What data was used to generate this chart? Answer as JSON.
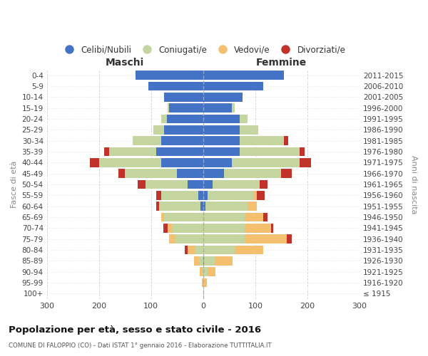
{
  "age_groups": [
    "100+",
    "95-99",
    "90-94",
    "85-89",
    "80-84",
    "75-79",
    "70-74",
    "65-69",
    "60-64",
    "55-59",
    "50-54",
    "45-49",
    "40-44",
    "35-39",
    "30-34",
    "25-29",
    "20-24",
    "15-19",
    "10-14",
    "5-9",
    "0-4"
  ],
  "birth_years": [
    "≤ 1915",
    "1916-1920",
    "1921-1925",
    "1926-1930",
    "1931-1935",
    "1936-1940",
    "1941-1945",
    "1946-1950",
    "1951-1955",
    "1956-1960",
    "1961-1965",
    "1966-1970",
    "1971-1975",
    "1976-1980",
    "1981-1985",
    "1986-1990",
    "1991-1995",
    "1996-2000",
    "2001-2005",
    "2006-2010",
    "2011-2015"
  ],
  "colors": {
    "celibi": "#4472c4",
    "coniugati": "#c5d5a0",
    "vedovi": "#f4c06f",
    "divorziati": "#c0322a"
  },
  "male": {
    "celibi": [
      0,
      0,
      0,
      0,
      0,
      0,
      0,
      0,
      5,
      10,
      30,
      50,
      80,
      90,
      80,
      75,
      70,
      65,
      75,
      105,
      130
    ],
    "coniugati": [
      0,
      0,
      2,
      8,
      15,
      55,
      60,
      75,
      80,
      70,
      80,
      100,
      120,
      90,
      55,
      20,
      10,
      3,
      0,
      0,
      0
    ],
    "vedovi": [
      0,
      2,
      5,
      10,
      15,
      10,
      8,
      5,
      0,
      0,
      0,
      0,
      0,
      0,
      0,
      0,
      0,
      0,
      0,
      0,
      0
    ],
    "divorziati": [
      0,
      0,
      0,
      0,
      5,
      0,
      8,
      0,
      5,
      10,
      15,
      12,
      18,
      10,
      0,
      0,
      0,
      0,
      0,
      0,
      0
    ]
  },
  "female": {
    "celibi": [
      0,
      0,
      0,
      2,
      0,
      0,
      0,
      0,
      5,
      8,
      18,
      40,
      55,
      70,
      70,
      70,
      70,
      55,
      75,
      115,
      155
    ],
    "coniugati": [
      0,
      2,
      8,
      20,
      60,
      80,
      80,
      80,
      80,
      90,
      90,
      110,
      130,
      115,
      85,
      35,
      15,
      5,
      0,
      0,
      0
    ],
    "vedovi": [
      2,
      5,
      15,
      35,
      55,
      80,
      50,
      35,
      18,
      5,
      0,
      0,
      0,
      0,
      0,
      0,
      0,
      0,
      0,
      0,
      0
    ],
    "divorziati": [
      0,
      0,
      0,
      0,
      0,
      10,
      5,
      8,
      0,
      15,
      15,
      20,
      22,
      10,
      8,
      0,
      0,
      0,
      0,
      0,
      0
    ]
  },
  "xlim": 300,
  "title": "Popolazione per età, sesso e stato civile - 2016",
  "subtitle": "COMUNE DI FALOPPIO (CO) - Dati ISTAT 1° gennaio 2016 - Elaborazione TUTTITALIA.IT",
  "xlabel_left": "Maschi",
  "xlabel_right": "Femmine",
  "ylabel_left": "Fasce di età",
  "ylabel_right": "Anni di nascita",
  "legend_labels": [
    "Celibi/Nubili",
    "Coniugati/e",
    "Vedovi/e",
    "Divorziati/e"
  ],
  "background_color": "#ffffff",
  "grid_color": "#cccccc"
}
